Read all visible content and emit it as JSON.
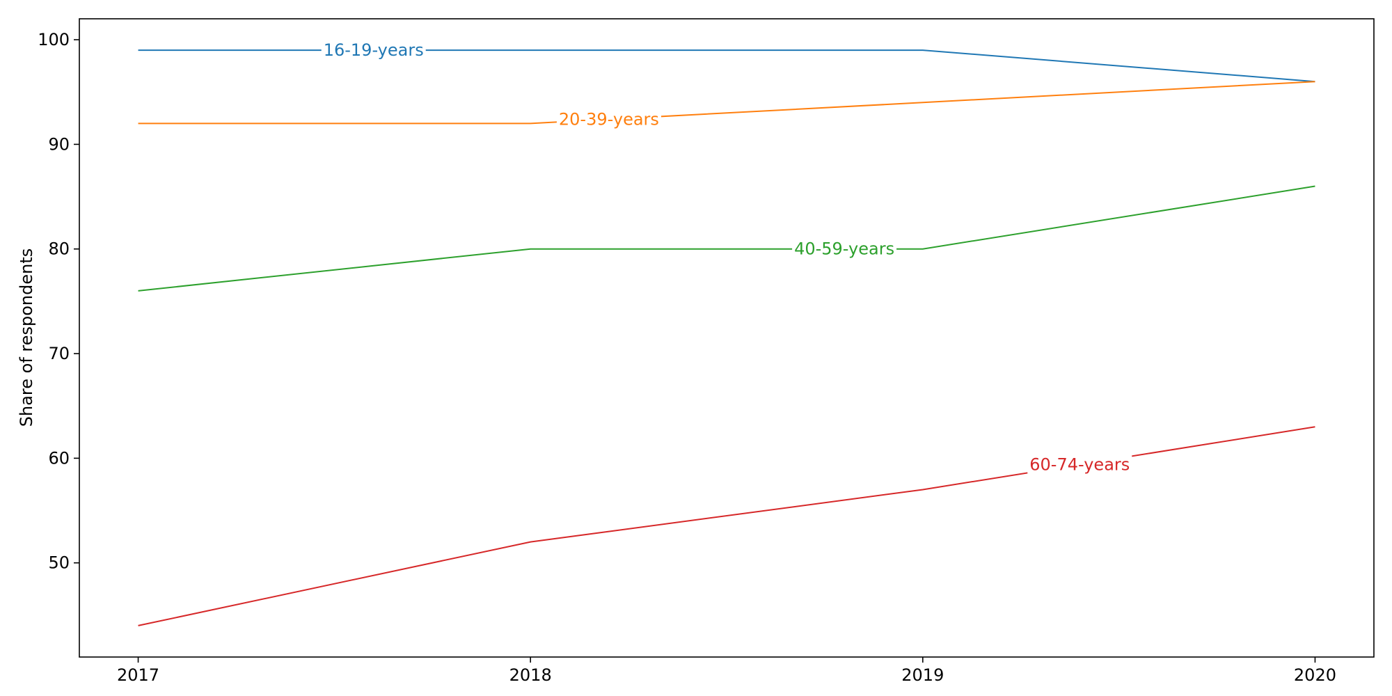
{
  "chart_data": {
    "type": "line",
    "title": "",
    "xlabel": "",
    "ylabel": "Share of respondents",
    "x": [
      2017,
      2018,
      2019,
      2020
    ],
    "xticks": [
      "2017",
      "2018",
      "2019",
      "2020"
    ],
    "yticks": [
      50,
      60,
      70,
      80,
      90,
      100
    ],
    "xlim": [
      2016.85,
      2020.15
    ],
    "ylim": [
      41,
      102
    ],
    "grid": false,
    "legend": "none (inline line labels)",
    "series": [
      {
        "name": "16-19-years",
        "color": "#1f77b4",
        "values": [
          99,
          99,
          99,
          96
        ],
        "label_at_x": 2017.6
      },
      {
        "name": "20-39-years",
        "color": "#ff7f0e",
        "values": [
          92,
          92,
          94,
          96
        ],
        "label_at_x": 2018.2
      },
      {
        "name": "40-59-years",
        "color": "#2ca02c",
        "values": [
          76,
          80,
          80,
          86
        ],
        "label_at_x": 2018.8
      },
      {
        "name": "60-74-years",
        "color": "#d62728",
        "values": [
          44,
          52,
          57,
          63
        ],
        "label_at_x": 2019.4
      }
    ]
  }
}
